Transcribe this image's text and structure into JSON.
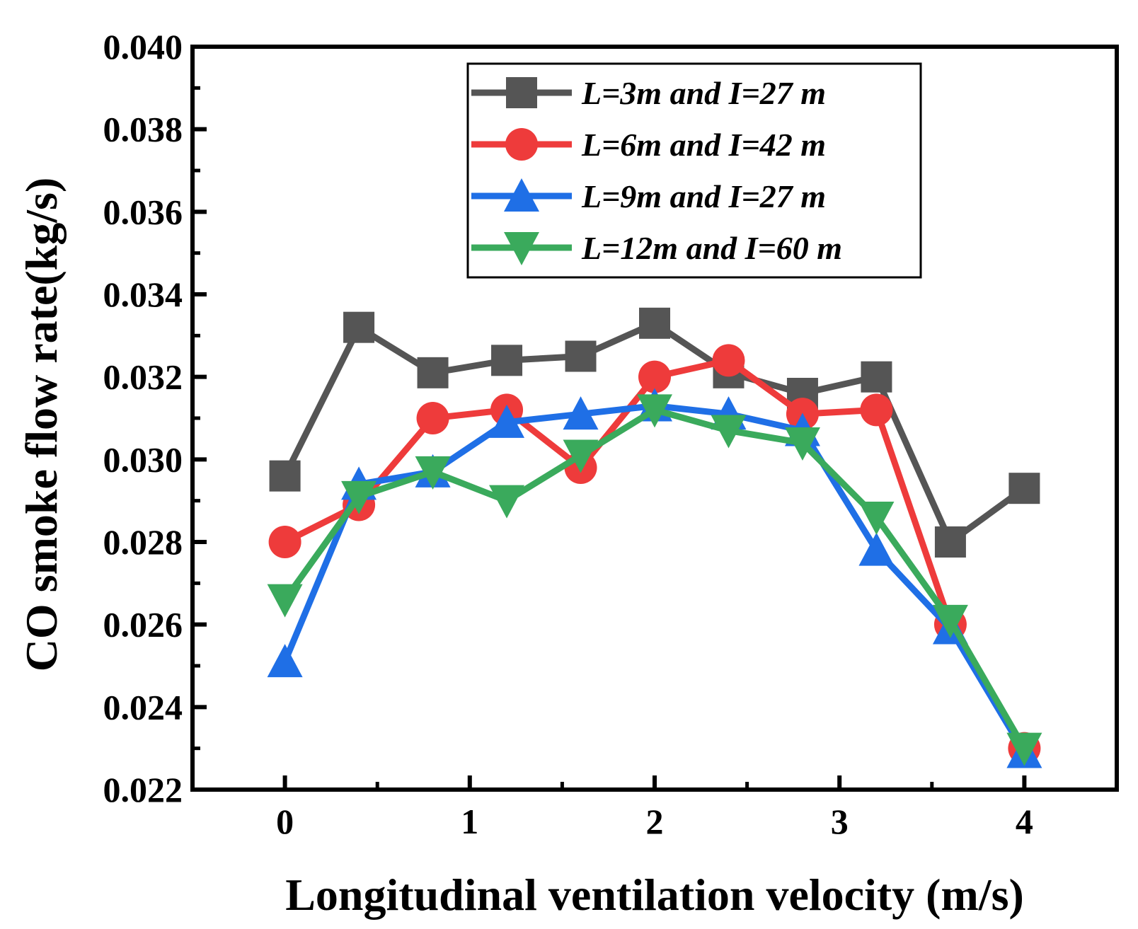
{
  "chart_data": {
    "type": "line",
    "xlabel": "Longitudinal ventilation velocity (m/s)",
    "ylabel": "CO smoke flow rate(kg/s)",
    "xlim": [
      -0.5,
      4.5
    ],
    "ylim": [
      0.022,
      0.04
    ],
    "xticks": [
      0,
      1,
      2,
      3,
      4
    ],
    "xtick_labels": [
      "0",
      "1",
      "2",
      "3",
      "4"
    ],
    "yticks": [
      0.022,
      0.024,
      0.026,
      0.028,
      0.03,
      0.032,
      0.034,
      0.036,
      0.038,
      0.04
    ],
    "ytick_labels": [
      "0.022",
      "0.024",
      "0.026",
      "0.028",
      "0.030",
      "0.032",
      "0.034",
      "0.036",
      "0.038",
      "0.040"
    ],
    "grid": false,
    "legend_position": "top-right",
    "x": [
      0,
      0.4,
      0.8,
      1.2,
      1.6,
      2.0,
      2.4,
      2.8,
      3.2,
      3.6,
      4.0
    ],
    "series": [
      {
        "name": "L=3m and I=27 m",
        "color": "#555555",
        "marker": "square",
        "values": [
          0.0296,
          0.0332,
          0.0321,
          0.0324,
          0.0325,
          0.0333,
          0.0321,
          0.0316,
          0.032,
          0.028,
          0.0293
        ]
      },
      {
        "name": "L=6m and I=42 m",
        "color": "#ee3b3b",
        "marker": "circle",
        "values": [
          0.028,
          0.0289,
          0.031,
          0.0312,
          0.0298,
          0.032,
          0.0324,
          0.0311,
          0.0312,
          0.026,
          0.023
        ]
      },
      {
        "name": "L=9m and I=27 m",
        "color": "#1f6fe6",
        "marker": "triangle-up",
        "values": [
          0.0251,
          0.0294,
          0.0297,
          0.0309,
          0.0311,
          0.0313,
          0.0311,
          0.0307,
          0.0278,
          0.0259,
          0.0229
        ]
      },
      {
        "name": "L=12m and I=60 m",
        "color": "#3aaa5c",
        "marker": "triangle-down",
        "values": [
          0.0266,
          0.0291,
          0.0297,
          0.029,
          0.0301,
          0.0312,
          0.0307,
          0.0304,
          0.0286,
          0.0261,
          0.023
        ]
      }
    ]
  }
}
